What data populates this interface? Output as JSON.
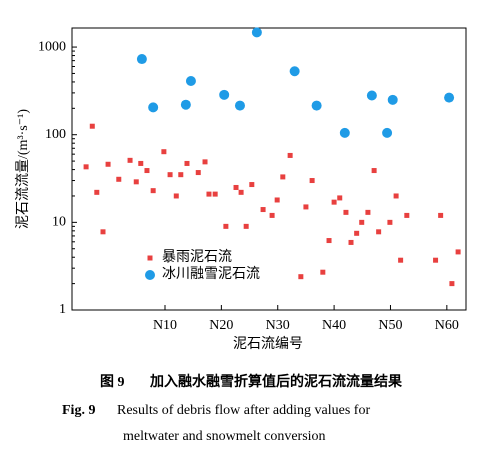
{
  "chart_data": {
    "type": "scatter",
    "y_label": "泥石流流量/(m³·s⁻¹)",
    "x_label": "泥石流编号",
    "xlim": [
      -6.5,
      63.4
    ],
    "xticks": [
      {
        "value": 10,
        "label": "N10"
      },
      {
        "value": 20,
        "label": "N20"
      },
      {
        "value": 30,
        "label": "N30"
      },
      {
        "value": 40,
        "label": "N40"
      },
      {
        "value": 50,
        "label": "N50"
      },
      {
        "value": 60,
        "label": "N60"
      }
    ],
    "ylim": [
      1,
      1650
    ],
    "yticks": [
      1,
      10,
      100,
      1000
    ],
    "y_log": true,
    "legend": "lower left",
    "series": [
      {
        "name": "暴雨泥石流",
        "color": "#e8403f",
        "marker": "square",
        "x": [
          -4.0,
          -2.9,
          -2.1,
          -1.0,
          -0.1,
          1.8,
          3.8,
          4.9,
          5.7,
          6.8,
          7.9,
          9.8,
          10.9,
          12.0,
          12.8,
          13.9,
          15.9,
          17.1,
          17.8,
          18.9,
          20.8,
          22.6,
          23.5,
          24.4,
          25.4,
          27.4,
          29.0,
          29.9,
          30.9,
          32.2,
          34.1,
          35.0,
          36.1,
          38.0,
          39.1,
          40.0,
          41.0,
          42.1,
          43.0,
          44.0,
          44.9,
          46.0,
          47.1,
          47.9,
          49.9,
          51.0,
          51.8,
          52.9,
          58.0,
          58.9,
          60.9,
          62.0
        ],
        "values": [
          43,
          125,
          22,
          7.8,
          46,
          31,
          51,
          29,
          47,
          39,
          23,
          64,
          35,
          20,
          35,
          47,
          37,
          49,
          21,
          21,
          9,
          25,
          22,
          9,
          27,
          14,
          12,
          18,
          33,
          58,
          2.4,
          15,
          30,
          2.7,
          6.2,
          17,
          19,
          13,
          5.9,
          7.5,
          10,
          13,
          39,
          7.8,
          10,
          20,
          3.7,
          12,
          3.7,
          12,
          2,
          4.6
        ]
      },
      {
        "name": "冰川融雪泥石流",
        "color": "#1f9be6",
        "marker": "circle",
        "x": [
          5.9,
          7.9,
          13.7,
          14.6,
          20.5,
          23.3,
          26.3,
          33.0,
          36.9,
          41.9,
          46.7,
          49.4,
          50.4,
          60.4
        ],
        "values": [
          730,
          205,
          220,
          410,
          285,
          215,
          1470,
          530,
          215,
          105,
          280,
          105,
          250,
          265
        ]
      }
    ]
  },
  "caption": {
    "zh_label": "图 9",
    "zh": "加入融水融雪折算值后的泥石流流量结果",
    "en_label": "Fig. 9",
    "en_line1": "Results of debris flow after adding values for",
    "en_line2": "meltwater and snowmelt conversion"
  }
}
